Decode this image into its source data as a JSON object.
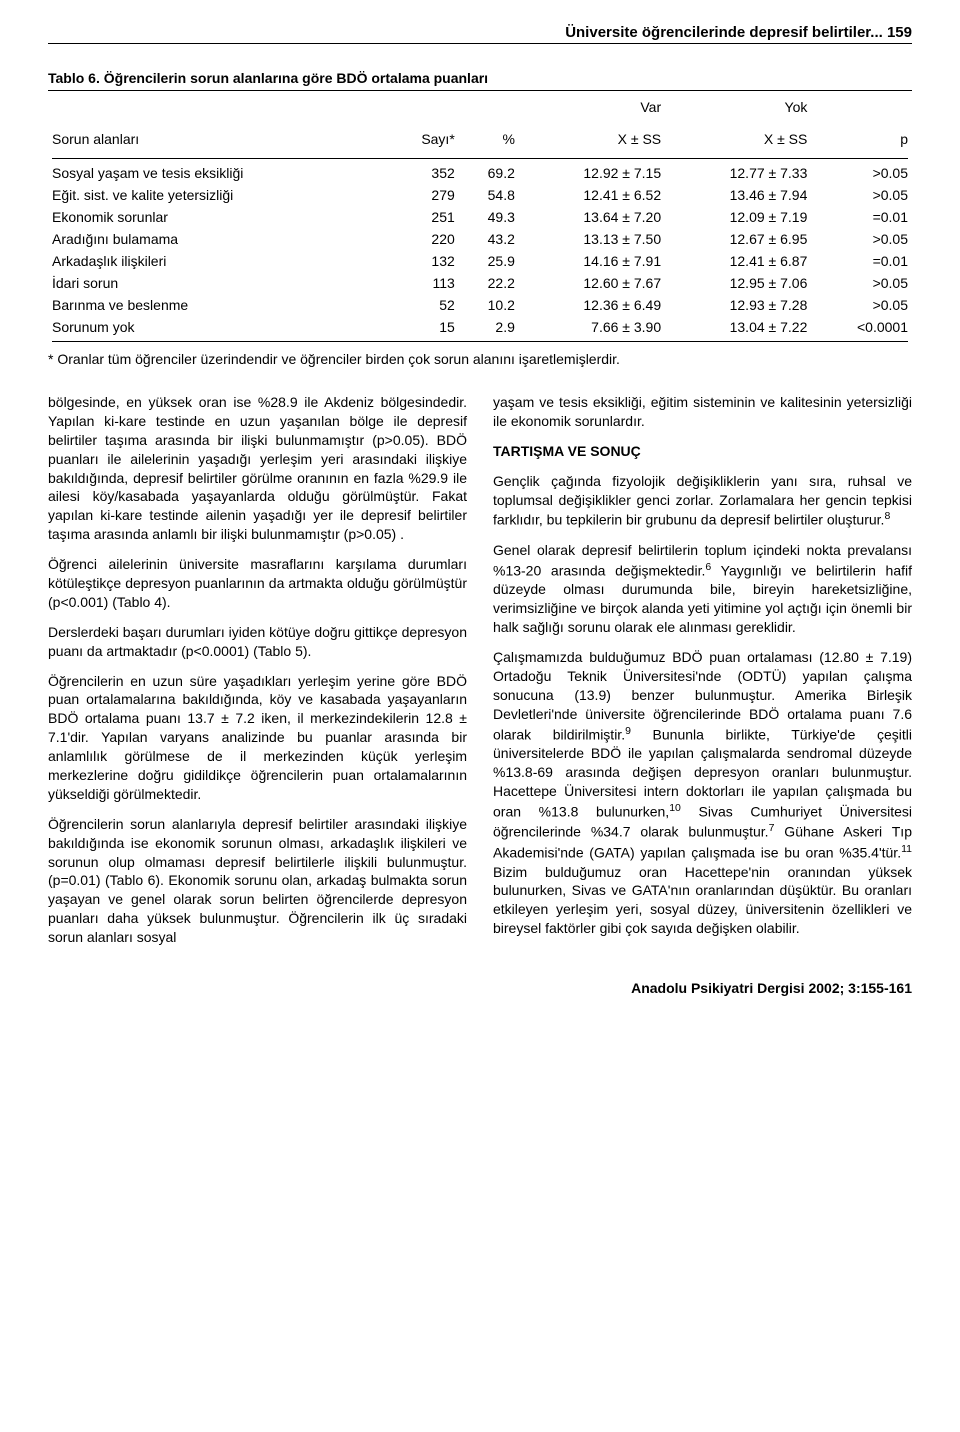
{
  "running_head": "Üniversite öğrencilerinde depresif belirtiler...    159",
  "table": {
    "type": "table",
    "title_label": "Tablo 6.",
    "title_text": "Öğrencilerin sorun alanlarına göre BDÖ ortalama puanları",
    "header_top": {
      "c3": "Var",
      "c4": "Yok"
    },
    "header": {
      "c0": "Sorun alanları",
      "c1": "Sayı*",
      "c2": "%",
      "c3": "X ± SS",
      "c4": "X ± SS",
      "c5": "p"
    },
    "rows": [
      {
        "c0": "Sosyal yaşam ve tesis eksikliği",
        "c1": "352",
        "c2": "69.2",
        "c3": "12.92 ± 7.15",
        "c4": "12.77 ± 7.33",
        "c5": ">0.05"
      },
      {
        "c0": "Eğit. sist. ve kalite yetersizliği",
        "c1": "279",
        "c2": "54.8",
        "c3": "12.41 ± 6.52",
        "c4": "13.46 ± 7.94",
        "c5": ">0.05"
      },
      {
        "c0": "Ekonomik sorunlar",
        "c1": "251",
        "c2": "49.3",
        "c3": "13.64 ± 7.20",
        "c4": "12.09 ± 7.19",
        "c5": "=0.01"
      },
      {
        "c0": "Aradığını bulamama",
        "c1": "220",
        "c2": "43.2",
        "c3": "13.13 ± 7.50",
        "c4": "12.67 ± 6.95",
        "c5": ">0.05"
      },
      {
        "c0": "Arkadaşlık ilişkileri",
        "c1": "132",
        "c2": "25.9",
        "c3": "14.16 ± 7.91",
        "c4": "12.41 ± 6.87",
        "c5": "=0.01"
      },
      {
        "c0": "İdari sorun",
        "c1": "113",
        "c2": "22.2",
        "c3": "12.60 ± 7.67",
        "c4": "12.95 ± 7.06",
        "c5": ">0.05"
      },
      {
        "c0": "Barınma ve beslenme",
        "c1": "52",
        "c2": "10.2",
        "c3": "12.36 ± 6.49",
        "c4": "12.93 ± 7.28",
        "c5": ">0.05"
      },
      {
        "c0": "Sorunum yok",
        "c1": "15",
        "c2": "2.9",
        "c3": "7.66 ± 3.90",
        "c4": "13.04 ± 7.22",
        "c5": "<0.0001"
      }
    ],
    "footnote": "* Oranlar tüm öğrenciler üzerindendir ve öğrenciler birden çok sorun alanını işaretlemişlerdir."
  },
  "left_col": {
    "p1": "bölgesinde, en yüksek oran ise %28.9 ile Akdeniz bölgesindedir. Yapılan ki-kare testinde en uzun yaşanılan bölge ile depresif belirtiler taşıma arasında bir ilişki bulunmamıştır (p>0.05). BDÖ puanları ile ailelerinin yaşadığı yerleşim yeri arasındaki ilişkiye bakıldığında, depresif belirtiler görülme oranının en fazla %29.9 ile ailesi köy/kasabada yaşayanlarda olduğu görülmüştür. Fakat yapılan ki-kare testinde ailenin yaşadığı yer ile depresif belirtiler taşıma arasında anlamlı bir ilişki bulunmamıştır (p>0.05) .",
    "p2": "Öğrenci ailelerinin üniversite masraflarını karşılama durumları kötüleştikçe depresyon puanlarının da artmakta olduğu görülmüştür (p<0.001) (Tablo 4).",
    "p3": "Derslerdeki başarı durumları iyiden kötüye doğru gittikçe depresyon puanı da artmaktadır (p<0.0001) (Tablo 5).",
    "p4": "Öğrencilerin en uzun süre yaşadıkları yerleşim yerine göre BDÖ puan ortalamalarına bakıldığında, köy ve kasabada yaşayanların BDÖ ortalama puanı 13.7 ± 7.2 iken, il merkezindekilerin 12.8 ± 7.1'dir. Yapılan varyans analizinde bu puanlar arasında bir anlamlılık görülmese de il merkezinden küçük yerleşim merkezlerine doğru gidildikçe öğrencilerin puan ortalamalarının yükseldiği görülmektedir.",
    "p5": "Öğrencilerin sorun alanlarıyla depresif belirtiler arasındaki ilişkiye bakıldığında ise ekonomik sorunun olması, arkadaşlık ilişkileri ve sorunun olup olmaması depresif belirtilerle ilişkili bulunmuştur. (p=0.01) (Tablo 6). Ekonomik sorunu olan, arkadaş bulmakta sorun yaşayan ve genel olarak sorun belirten öğrencilerde depresyon puanları daha yüksek bulunmuştur. Öğrencilerin ilk üç sıradaki sorun alanları sosyal"
  },
  "right_col": {
    "p1": "yaşam ve tesis eksikliği, eğitim sisteminin ve kalitesinin yetersizliği ile ekonomik sorunlardır.",
    "hdr": "TARTIŞMA VE SONUÇ",
    "p2_a": "Gençlik çağında fizyolojik değişikliklerin yanı sıra, ruhsal ve toplumsal değişiklikler genci zorlar. Zorlamalara her gencin tepkisi farklıdır, bu tepkilerin bir grubunu da depresif belirtiler oluşturur.",
    "p2_b": "8",
    "p3_a": "Genel olarak depresif belirtilerin toplum içindeki nokta prevalansı %13-20 arasında değişmektedir.",
    "p3_b": "6",
    "p3_c": " Yaygınlığı ve belirtilerin hafif düzeyde olması durumunda bile, bireyin hareketsizliğine, verimsizliğine ve birçok alanda yeti yitimine yol açtığı için önemli bir halk sağlığı sorunu olarak ele alınması gereklidir.",
    "p4_a": "Çalışmamızda bulduğumuz BDÖ puan ortalaması (12.80 ± 7.19) Ortadoğu Teknik Üniversitesi'nde (ODTÜ) yapılan çalışma sonucuna (13.9) benzer bulunmuştur. Amerika Birleşik Devletleri'nde üniversite öğrencilerinde BDÖ ortalama puanı 7.6 olarak bildirilmiştir.",
    "p4_b": "9",
    "p4_c": " Bununla birlikte, Türkiye'de çeşitli üniversitelerde BDÖ ile yapılan çalışmalarda sendromal düzeyde %13.8-69 arasında değişen depresyon oranları bulunmuştur. Hacettepe Üniversitesi intern doktorları ile yapılan çalışmada bu oran %13.8 bulunurken,",
    "p4_d": "10",
    "p4_e": " Sivas Cumhuriyet Üniversitesi öğrencilerinde %34.7 olarak bulunmuştur.",
    "p4_f": "7",
    "p4_g": " Gühane Askeri Tıp Akademisi'nde (GATA) yapılan çalışmada ise bu oran %35.4'tür.",
    "p4_h": "11",
    "p4_i": " Bizim bulduğumuz oran Hacettepe'nin oranından yüksek bulunurken, Sivas ve GATA'nın oranlarından düşüktür. Bu oranları etkileyen yerleşim yeri, sosyal düzey, üniversitenin özellikleri ve bireysel faktörler gibi çok sayıda değişken olabilir."
  },
  "journal_footer": "Anadolu Psikiyatri Dergisi 2002; 3:155-161"
}
